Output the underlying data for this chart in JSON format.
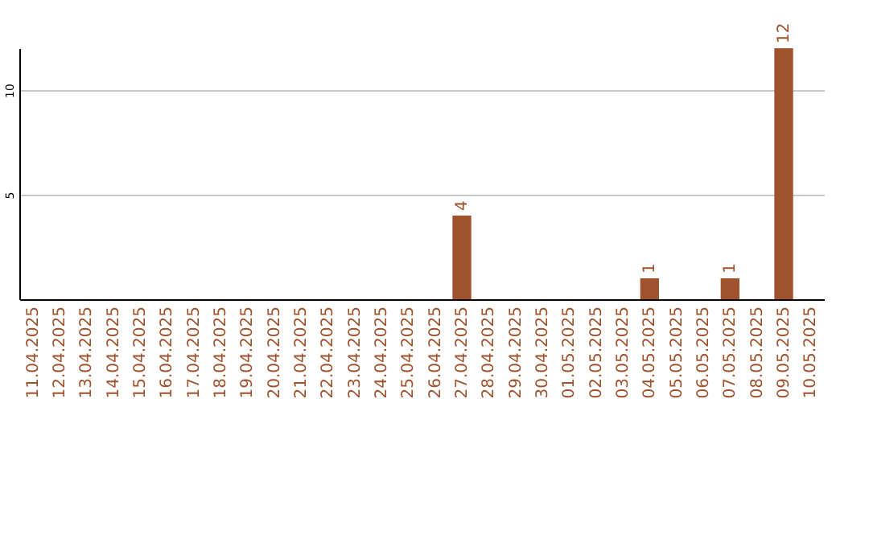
{
  "chart_data": {
    "type": "bar",
    "categories": [
      "11.04.2025",
      "12.04.2025",
      "13.04.2025",
      "14.04.2025",
      "15.04.2025",
      "16.04.2025",
      "17.04.2025",
      "18.04.2025",
      "19.04.2025",
      "20.04.2025",
      "21.04.2025",
      "22.04.2025",
      "23.04.2025",
      "24.04.2025",
      "25.04.2025",
      "26.04.2025",
      "27.04.2025",
      "28.04.2025",
      "29.04.2025",
      "30.04.2025",
      "01.05.2025",
      "02.05.2025",
      "03.05.2025",
      "04.05.2025",
      "05.05.2025",
      "06.05.2025",
      "07.05.2025",
      "08.05.2025",
      "09.05.2025",
      "10.05.2025"
    ],
    "values": [
      0,
      0,
      0,
      0,
      0,
      0,
      0,
      0,
      0,
      0,
      0,
      0,
      0,
      0,
      0,
      0,
      4,
      0,
      0,
      0,
      0,
      0,
      0,
      1,
      0,
      0,
      1,
      0,
      12,
      0
    ],
    "value_labels": [
      null,
      null,
      null,
      null,
      null,
      null,
      null,
      null,
      null,
      null,
      null,
      null,
      null,
      null,
      null,
      null,
      "4",
      null,
      null,
      null,
      null,
      null,
      null,
      "1",
      null,
      null,
      "1",
      null,
      "12",
      null
    ],
    "color": "#a0522d",
    "ylim": [
      0,
      12
    ],
    "yticks": [
      5,
      10
    ],
    "grid": "y"
  }
}
